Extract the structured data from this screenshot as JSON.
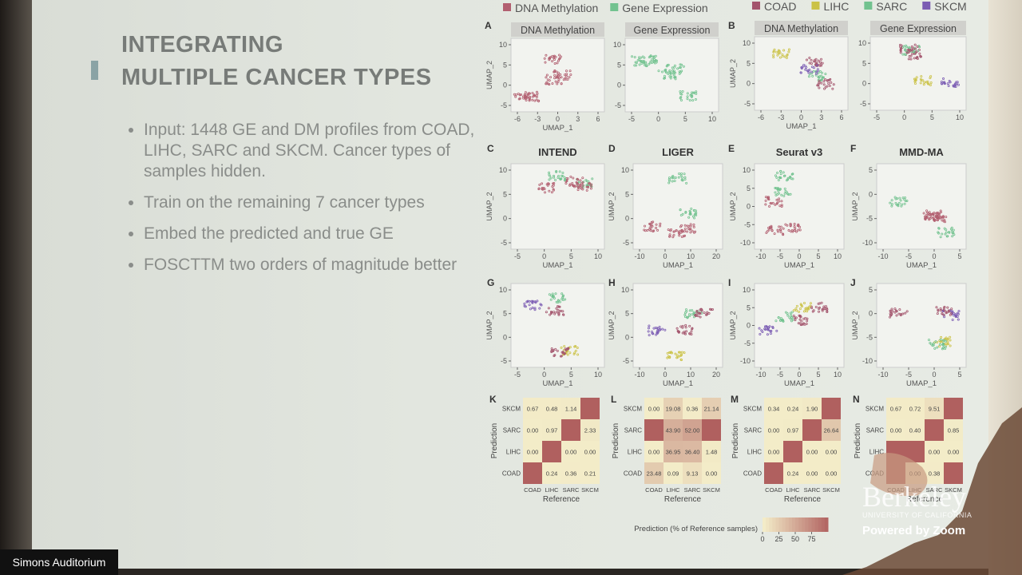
{
  "slide": {
    "title": [
      "INTEGRATING",
      "MULTIPLE CANCER TYPES"
    ],
    "bullets": [
      "Input: 1448 GE and DM profiles from COAD, LIHC, SARC and SKCM. Cancer types of samples hidden.",
      "Train on the remaining 7 cancer types",
      "Embed the predicted and true GE",
      "FOSCTTM two orders of magnitude better"
    ]
  },
  "figure": {
    "legend_modality": [
      {
        "name": "DNA Methylation",
        "color": "#b25f70"
      },
      {
        "name": "Gene Expression",
        "color": "#72c28f"
      }
    ],
    "legend_cancer": [
      {
        "name": "COAD",
        "color": "#a3546c"
      },
      {
        "name": "LIHC",
        "color": "#cbc246"
      },
      {
        "name": "SARC",
        "color": "#72c28f"
      },
      {
        "name": "SKCM",
        "color": "#7b5cb3"
      }
    ],
    "x_label": "UMAP_1",
    "y_label": "UMAP_2",
    "panels": [
      {
        "letter": "A",
        "plots": [
          {
            "strip": "DNA Methylation",
            "xticks": [
              -6,
              -3,
              0,
              3,
              6
            ],
            "yticks": [
              10,
              5,
              0,
              -5
            ]
          },
          {
            "strip": "Gene Expression",
            "xticks": [
              -5,
              0,
              5,
              10
            ],
            "yticks": [
              10,
              5,
              0,
              -5
            ]
          }
        ]
      },
      {
        "letter": "B",
        "plots": [
          {
            "strip": "DNA Methylation",
            "xticks": [
              -6,
              -3,
              0,
              3,
              6
            ],
            "yticks": [
              10,
              5,
              0,
              -5
            ]
          },
          {
            "strip": "Gene Expression",
            "xticks": [
              -5,
              0,
              5,
              10
            ],
            "yticks": [
              10,
              5,
              0,
              -5
            ]
          }
        ]
      },
      {
        "letter": "C",
        "title": "INTEND",
        "plots": [
          {
            "xticks": [
              -5,
              0,
              5,
              10
            ],
            "yticks": [
              10,
              5,
              0,
              -5
            ]
          }
        ]
      },
      {
        "letter": "D",
        "title": "LIGER",
        "plots": [
          {
            "xticks": [
              -10,
              0,
              10,
              20
            ],
            "yticks": [
              10,
              5,
              0,
              -5
            ]
          }
        ]
      },
      {
        "letter": "E",
        "title": "Seurat v3",
        "plots": [
          {
            "xticks": [
              -10,
              -5,
              0,
              5,
              10
            ],
            "yticks": [
              10,
              5,
              0,
              -5,
              -10
            ]
          }
        ]
      },
      {
        "letter": "F",
        "title": "MMD-MA",
        "plots": [
          {
            "xticks": [
              -10,
              -5,
              0,
              5
            ],
            "yticks": [
              5,
              0,
              -5,
              -10
            ]
          }
        ]
      },
      {
        "letter": "G",
        "plots": [
          {
            "xticks": [
              -5,
              0,
              5,
              10
            ],
            "yticks": [
              10,
              5,
              0,
              -5
            ]
          }
        ]
      },
      {
        "letter": "H",
        "plots": [
          {
            "xticks": [
              -10,
              0,
              10,
              20
            ],
            "yticks": [
              10,
              5,
              0,
              -5
            ]
          }
        ]
      },
      {
        "letter": "I",
        "plots": [
          {
            "xticks": [
              -10,
              -5,
              0,
              5,
              10
            ],
            "yticks": [
              10,
              5,
              0,
              -5,
              -10
            ]
          }
        ]
      },
      {
        "letter": "J",
        "plots": [
          {
            "xticks": [
              -10,
              -5,
              0,
              5
            ],
            "yticks": [
              5,
              0,
              -5,
              -10
            ]
          }
        ]
      }
    ],
    "heatmap_rows": [
      "SKCM",
      "SARC",
      "LIHC",
      "COAD"
    ],
    "heatmap_cols": [
      "COAD",
      "LIHC",
      "SARC",
      "SKCM"
    ],
    "heatmap_y_label": "Prediction",
    "heatmap_x_label": "Reference",
    "heatmaps": [
      {
        "letter": "K",
        "cells": [
          [
            "0.67",
            "0.48",
            "1.14",
            null
          ],
          [
            "0.00",
            "0.97",
            null,
            "2.33"
          ],
          [
            "0.00",
            null,
            "0.00",
            "0.00"
          ],
          [
            null,
            "0.24",
            "0.36",
            "0.21"
          ]
        ]
      },
      {
        "letter": "L",
        "cells": [
          [
            "0.00",
            "19.08",
            "0.36",
            "21.14"
          ],
          [
            null,
            "43.90",
            "52.00",
            null
          ],
          [
            "0.00",
            "36.95",
            "36.40",
            "1.48"
          ],
          [
            "23.48",
            "0.09",
            "9.13",
            "0.00"
          ]
        ]
      },
      {
        "letter": "M",
        "cells": [
          [
            "0.34",
            "0.24",
            "1.90",
            null
          ],
          [
            "0.00",
            "0.97",
            null,
            "26.64"
          ],
          [
            "0.00",
            null,
            "0.00",
            "0.00"
          ],
          [
            null,
            "0.24",
            "0.00",
            "0.00"
          ]
        ]
      },
      {
        "letter": "N",
        "cells": [
          [
            "0.67",
            "0.72",
            "9.51",
            null
          ],
          [
            "0.00",
            "0.40",
            null,
            "0.85"
          ],
          [
            null,
            null,
            "0.00",
            "0.00"
          ],
          [
            null,
            "0.00",
            "0.38",
            null
          ]
        ]
      }
    ],
    "colorbar_label": "Prediction (% of Reference samples)",
    "colorbar_ticks": [
      0,
      25,
      50,
      75
    ]
  },
  "overlay": {
    "room": "Simons Auditorium",
    "brand": "Berkeley",
    "brand_sub": "UNIVERSITY OF CALIFORNIA",
    "powered": "Powered by Zoom"
  }
}
